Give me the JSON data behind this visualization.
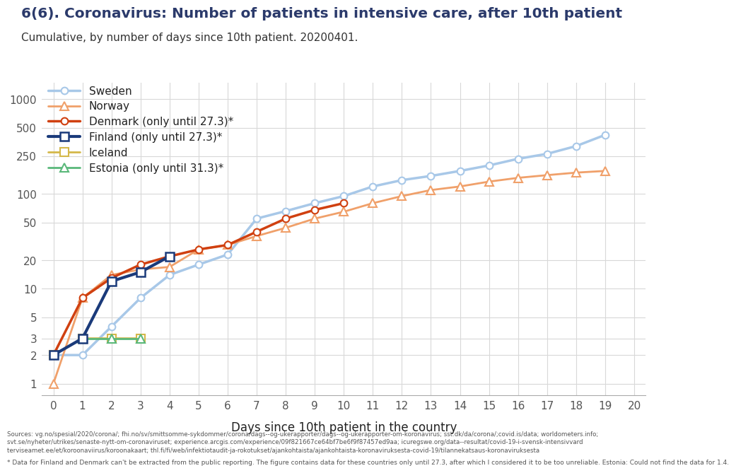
{
  "title": "6(6). Coronavirus: Number of patients in intensive care, after 10th patient",
  "subtitle": "Cumulative, by number of days since 10th patient. 20200401.",
  "xlabel": "Days since 10th patient in the country",
  "ylabel": "",
  "footnote1": "Sources: vg.no/spesial/2020/corona/; fhi.no/sv/smittsomme-sykdommer/corona/dags--og-ukerapporter/dags--og-ukerapporter-om-koronavirus; sst.dk/da/corona/;covid.is/data; worldometers.info;",
  "footnote2": "svt.se/nyheter/utrikes/senaste-nytt-om-coronaviruset; experience.arcgis.com/experience/09f821667ce64bf7be6f9f87457ed9aa; icuregswe.org/data--resultat/covid-19-i-svensk-intensivvard",
  "footnote3": "terviseamet.ee/et/koroonaviirus/koroonakaart; thl.fi/fi/web/infektiotaudit-ja-rokotukset/ajankohtaista/ajankohtaista-koronaviruksesta-covid-19/tilannekatsaus-koronaviruksesta",
  "footnote4": "* Data for Finland and Denmark can't be extracted from the public reporting. The figure contains data for these countries only until 27.3, after which I considered it to be too unreliable. Estonia: Could not find the data for 1.4.",
  "series": {
    "Sweden": {
      "x": [
        0,
        1,
        2,
        3,
        4,
        5,
        6,
        7,
        8,
        9,
        10,
        11,
        12,
        13,
        14,
        15,
        16,
        17,
        18,
        19
      ],
      "y": [
        2,
        2,
        4,
        8,
        14,
        18,
        23,
        55,
        66,
        80,
        95,
        120,
        140,
        155,
        175,
        200,
        235,
        265,
        320,
        420
      ],
      "color": "#a8c8e8",
      "linewidth": 2.5,
      "marker": "o",
      "markersize": 7,
      "markerfacecolor": "white",
      "markeredgecolor": "#a8c8e8",
      "markeredgewidth": 1.5,
      "label": "Sweden",
      "zorder": 2
    },
    "Norway": {
      "x": [
        0,
        1,
        2,
        3,
        4,
        5,
        6,
        7,
        8,
        9,
        10,
        11,
        12,
        13,
        14,
        15,
        16,
        17,
        18,
        19
      ],
      "y": [
        1,
        8,
        14,
        16,
        17,
        26,
        29,
        36,
        44,
        55,
        65,
        80,
        95,
        110,
        120,
        135,
        148,
        158,
        168,
        175
      ],
      "color": "#f0a06a",
      "linewidth": 2.0,
      "marker": "^",
      "markersize": 8,
      "markerfacecolor": "white",
      "markeredgecolor": "#f0a06a",
      "markeredgewidth": 1.5,
      "label": "Norway",
      "zorder": 2
    },
    "Denmark": {
      "x": [
        0,
        1,
        2,
        3,
        4,
        5,
        6,
        7,
        8,
        9,
        10
      ],
      "y": [
        2,
        8,
        13,
        18,
        22,
        26,
        29,
        40,
        55,
        68,
        80
      ],
      "color": "#d04010",
      "linewidth": 2.5,
      "marker": "o",
      "markersize": 7,
      "markerfacecolor": "white",
      "markeredgecolor": "#d04010",
      "markeredgewidth": 1.5,
      "label": "Denmark (only until 27.3)*",
      "zorder": 4
    },
    "Finland": {
      "x": [
        0,
        1,
        2,
        3,
        4
      ],
      "y": [
        2,
        3,
        12,
        15,
        22
      ],
      "color": "#1a3a7a",
      "linewidth": 3.0,
      "marker": "s",
      "markersize": 8,
      "markerfacecolor": "white",
      "markeredgecolor": "#1a3a7a",
      "markeredgewidth": 1.8,
      "label": "Finland (only until 27.3)*",
      "zorder": 5
    },
    "Iceland": {
      "x": [
        0,
        1,
        2,
        3
      ],
      "y": [
        2,
        3,
        3,
        3
      ],
      "color": "#d4b84a",
      "linewidth": 2.0,
      "marker": "s",
      "markersize": 8,
      "markerfacecolor": "white",
      "markeredgecolor": "#d4b84a",
      "markeredgewidth": 1.5,
      "label": "Iceland",
      "zorder": 3
    },
    "Estonia": {
      "x": [
        1,
        2,
        3
      ],
      "y": [
        3,
        3,
        3
      ],
      "color": "#5ab87a",
      "linewidth": 2.0,
      "marker": "^",
      "markersize": 8,
      "markerfacecolor": "white",
      "markeredgecolor": "#5ab87a",
      "markeredgewidth": 1.5,
      "label": "Estonia (only until 31.3)*",
      "zorder": 3
    }
  },
  "xlim": [
    -0.4,
    20.4
  ],
  "yticks": [
    1,
    2,
    3,
    5,
    10,
    20,
    50,
    100,
    250,
    500,
    1000
  ],
  "ytick_labels": [
    "1",
    "2",
    "3",
    "5",
    "10",
    "20",
    "50",
    "100",
    "250",
    "500",
    "1000"
  ],
  "xticks": [
    0,
    1,
    2,
    3,
    4,
    5,
    6,
    7,
    8,
    9,
    10,
    11,
    12,
    13,
    14,
    15,
    16,
    17,
    18,
    19,
    20
  ],
  "ylim_log": [
    0.75,
    1500
  ],
  "background_color": "#ffffff",
  "grid_color": "#d8d8d8",
  "title_color": "#2b3a6b",
  "subtitle_color": "#333333",
  "tick_color": "#555555",
  "spine_color": "#aaaaaa"
}
